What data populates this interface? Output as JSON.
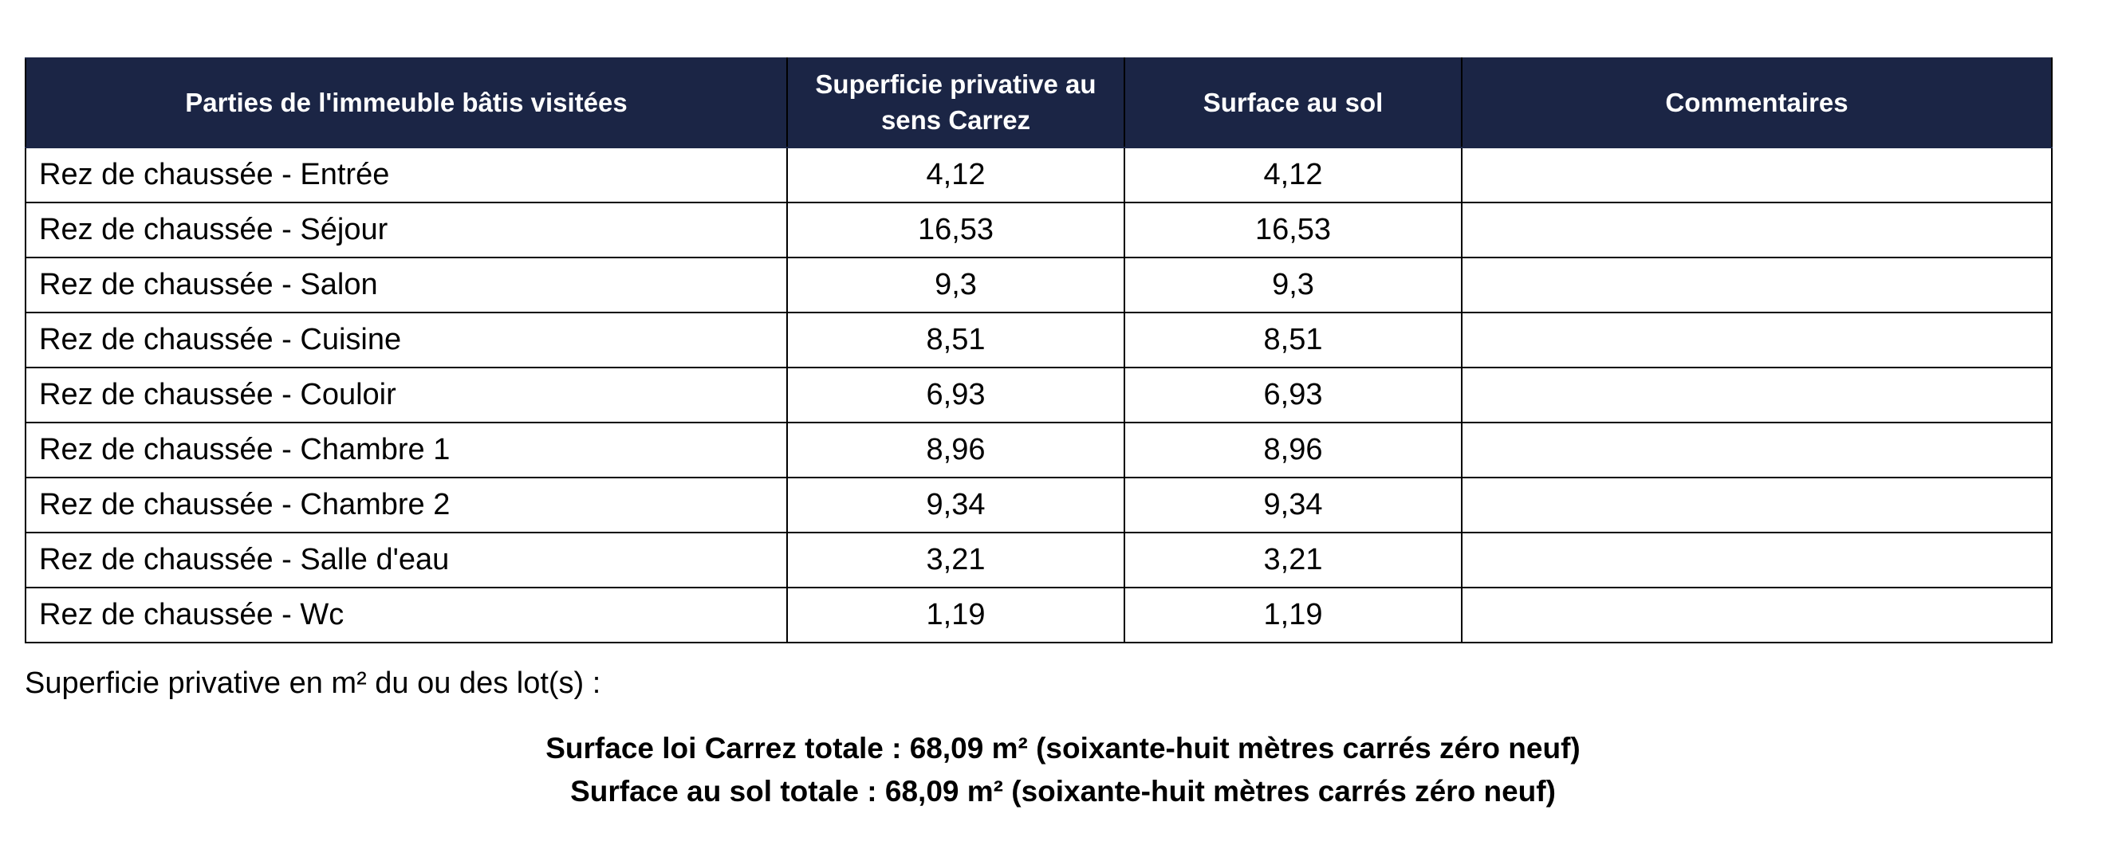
{
  "table": {
    "columns": [
      "Parties de l'immeuble bâtis visitées",
      "Superficie privative au sens Carrez",
      "Surface au sol",
      "Commentaires"
    ],
    "rows": [
      {
        "piece": "Rez de chaussée - Entrée",
        "carrez": "4,12",
        "sol": "4,12"
      },
      {
        "piece": "Rez de chaussée - Séjour",
        "carrez": "16,53",
        "sol": "16,53"
      },
      {
        "piece": "Rez de chaussée - Salon",
        "carrez": "9,3",
        "sol": "9,3"
      },
      {
        "piece": "Rez de chaussée - Cuisine",
        "carrez": "8,51",
        "sol": "8,51"
      },
      {
        "piece": "Rez de chaussée - Couloir",
        "carrez": "6,93",
        "sol": "6,93"
      },
      {
        "piece": "Rez de chaussée - Chambre 1",
        "carrez": "8,96",
        "sol": "8,96"
      },
      {
        "piece": "Rez de chaussée - Chambre 2",
        "carrez": "9,34",
        "sol": "9,34"
      },
      {
        "piece": "Rez de chaussée - Salle d'eau",
        "carrez": "3,21",
        "sol": "3,21"
      },
      {
        "piece": "Rez de chaussée - Wc",
        "carrez": "1,19",
        "sol": "1,19"
      }
    ]
  },
  "summary": {
    "intro": "Superficie privative en m² du ou des lot(s) :",
    "carrez_total": "Surface loi Carrez totale : 68,09 m² (soixante-huit mètres carrés zéro neuf)",
    "sol_total": "Surface au sol totale : 68,09 m² (soixante-huit mètres carrés zéro neuf)"
  }
}
